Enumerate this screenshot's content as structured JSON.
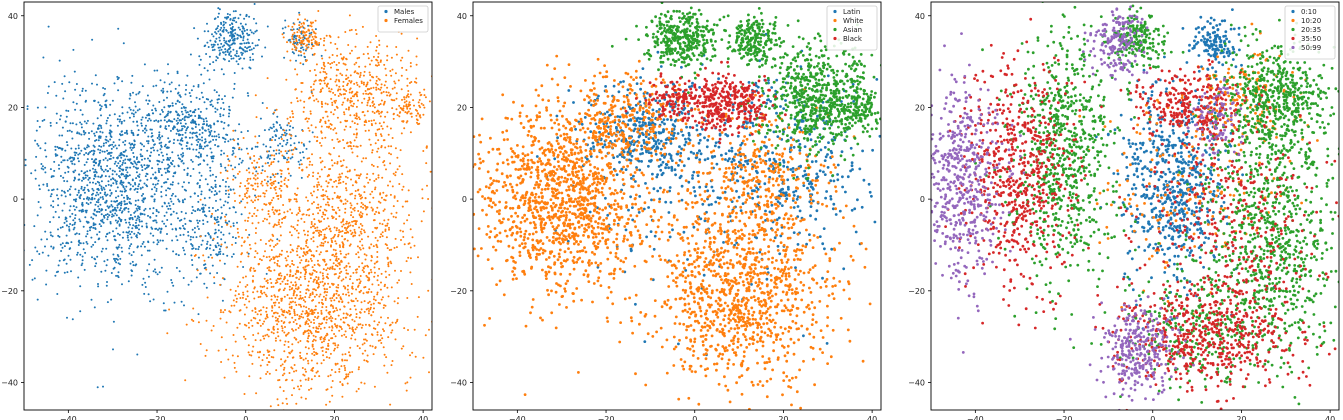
{
  "chart_data": [
    {
      "type": "scatter",
      "xlim": [
        -50,
        42
      ],
      "ylim": [
        -46,
        43
      ],
      "x_ticks": [
        -40,
        -20,
        0,
        20,
        40
      ],
      "y_ticks": [
        -40,
        -20,
        0,
        20,
        40
      ],
      "grid": false,
      "legend": "top-right",
      "series": [
        {
          "name": "Males",
          "color": "#1f77b4",
          "clusters": [
            {
              "center": [
                -30,
                3
              ],
              "spread": [
                9,
                11
              ],
              "weight": 40
            },
            {
              "center": [
                -12,
                16
              ],
              "spread": [
                6,
                6
              ],
              "weight": 12
            },
            {
              "center": [
                -3,
                35
              ],
              "spread": [
                3,
                3
              ],
              "weight": 7
            },
            {
              "center": [
                -8,
                -5
              ],
              "spread": [
                4,
                7
              ],
              "weight": 6
            },
            {
              "center": [
                12,
                35
              ],
              "spread": [
                2,
                2
              ],
              "weight": 2
            },
            {
              "center": [
                8,
                12
              ],
              "spread": [
                3,
                4
              ],
              "weight": 3
            }
          ]
        },
        {
          "name": "Females",
          "color": "#ff7f0e",
          "clusters": [
            {
              "center": [
                14,
                -25
              ],
              "spread": [
                10,
                9
              ],
              "weight": 30
            },
            {
              "center": [
                22,
                -5
              ],
              "spread": [
                9,
                10
              ],
              "weight": 22
            },
            {
              "center": [
                25,
                22
              ],
              "spread": [
                7,
                7
              ],
              "weight": 15
            },
            {
              "center": [
                37,
                20
              ],
              "spread": [
                2,
                2
              ],
              "weight": 2
            },
            {
              "center": [
                13,
                35
              ],
              "spread": [
                2,
                2
              ],
              "weight": 3
            },
            {
              "center": [
                3,
                0
              ],
              "spread": [
                4,
                6
              ],
              "weight": 5
            }
          ]
        }
      ]
    },
    {
      "type": "scatter",
      "xlim": [
        -50,
        42
      ],
      "ylim": [
        -46,
        43
      ],
      "x_ticks": [
        -40,
        -20,
        0,
        20,
        40
      ],
      "y_ticks": [
        -40,
        -20,
        0,
        20,
        40
      ],
      "grid": false,
      "legend": "top-right",
      "series": [
        {
          "name": "Latin",
          "color": "#1f77b4",
          "clusters": [
            {
              "center": [
                -12,
                14
              ],
              "spread": [
                7,
                5
              ],
              "weight": 10
            },
            {
              "center": [
                20,
                8
              ],
              "spread": [
                9,
                9
              ],
              "weight": 10
            },
            {
              "center": [
                0,
                2
              ],
              "spread": [
                14,
                12
              ],
              "weight": 6
            }
          ]
        },
        {
          "name": "White",
          "color": "#ff7f0e",
          "clusters": [
            {
              "center": [
                -30,
                0
              ],
              "spread": [
                9,
                10
              ],
              "weight": 35
            },
            {
              "center": [
                10,
                -20
              ],
              "spread": [
                10,
                10
              ],
              "weight": 30
            },
            {
              "center": [
                -15,
                18
              ],
              "spread": [
                7,
                5
              ],
              "weight": 8
            },
            {
              "center": [
                15,
                5
              ],
              "spread": [
                8,
                8
              ],
              "weight": 10
            }
          ]
        },
        {
          "name": "Asian",
          "color": "#2ca02c",
          "clusters": [
            {
              "center": [
                -3,
                35
              ],
              "spread": [
                4,
                3
              ],
              "weight": 10
            },
            {
              "center": [
                13,
                35
              ],
              "spread": [
                3,
                2.5
              ],
              "weight": 6
            },
            {
              "center": [
                28,
                22
              ],
              "spread": [
                6,
                6
              ],
              "weight": 18
            },
            {
              "center": [
                37,
                20
              ],
              "spread": [
                2,
                2
              ],
              "weight": 3
            }
          ]
        },
        {
          "name": "Black",
          "color": "#d62728",
          "clusters": [
            {
              "center": [
                7,
                21
              ],
              "spread": [
                5,
                3
              ],
              "weight": 10
            },
            {
              "center": [
                -5,
                22
              ],
              "spread": [
                3,
                2
              ],
              "weight": 3
            }
          ]
        }
      ]
    },
    {
      "type": "scatter",
      "xlim": [
        -50,
        42
      ],
      "ylim": [
        -46,
        43
      ],
      "x_ticks": [
        -40,
        -20,
        0,
        20,
        40
      ],
      "y_ticks": [
        -40,
        -20,
        0,
        20,
        40
      ],
      "grid": false,
      "legend": "top-right",
      "series": [
        {
          "name": "0:10",
          "color": "#1f77b4",
          "clusters": [
            {
              "center": [
                5,
                3
              ],
              "spread": [
                6,
                10
              ],
              "weight": 14
            },
            {
              "center": [
                14,
                34
              ],
              "spread": [
                2.5,
                2.5
              ],
              "weight": 3
            }
          ]
        },
        {
          "name": "10:20",
          "color": "#ff7f0e",
          "clusters": [
            {
              "center": [
                8,
                5
              ],
              "spread": [
                10,
                12
              ],
              "weight": 4
            },
            {
              "center": [
                20,
                22
              ],
              "spread": [
                6,
                5
              ],
              "weight": 3
            }
          ]
        },
        {
          "name": "20:35",
          "color": "#2ca02c",
          "clusters": [
            {
              "center": [
                -20,
                10
              ],
              "spread": [
                6,
                14
              ],
              "weight": 16
            },
            {
              "center": [
                27,
                -8
              ],
              "spread": [
                8,
                14
              ],
              "weight": 18
            },
            {
              "center": [
                28,
                22
              ],
              "spread": [
                6,
                6
              ],
              "weight": 12
            },
            {
              "center": [
                -3,
                35
              ],
              "spread": [
                3,
                3
              ],
              "weight": 4
            },
            {
              "center": [
                10,
                -28
              ],
              "spread": [
                8,
                6
              ],
              "weight": 6
            }
          ]
        },
        {
          "name": "35:50",
          "color": "#d62728",
          "clusters": [
            {
              "center": [
                -30,
                5
              ],
              "spread": [
                6,
                12
              ],
              "weight": 14
            },
            {
              "center": [
                12,
                -30
              ],
              "spread": [
                10,
                6
              ],
              "weight": 12
            },
            {
              "center": [
                8,
                20
              ],
              "spread": [
                6,
                4
              ],
              "weight": 6
            },
            {
              "center": [
                18,
                -5
              ],
              "spread": [
                10,
                12
              ],
              "weight": 8
            }
          ]
        },
        {
          "name": "50:99",
          "color": "#9467bd",
          "clusters": [
            {
              "center": [
                -43,
                5
              ],
              "spread": [
                5,
                10
              ],
              "weight": 12
            },
            {
              "center": [
                -3,
                -33
              ],
              "spread": [
                4,
                5
              ],
              "weight": 7
            },
            {
              "center": [
                -8,
                34
              ],
              "spread": [
                3,
                4
              ],
              "weight": 4
            },
            {
              "center": [
                15,
                18
              ],
              "spread": [
                3,
                4
              ],
              "weight": 2
            }
          ]
        }
      ]
    }
  ]
}
